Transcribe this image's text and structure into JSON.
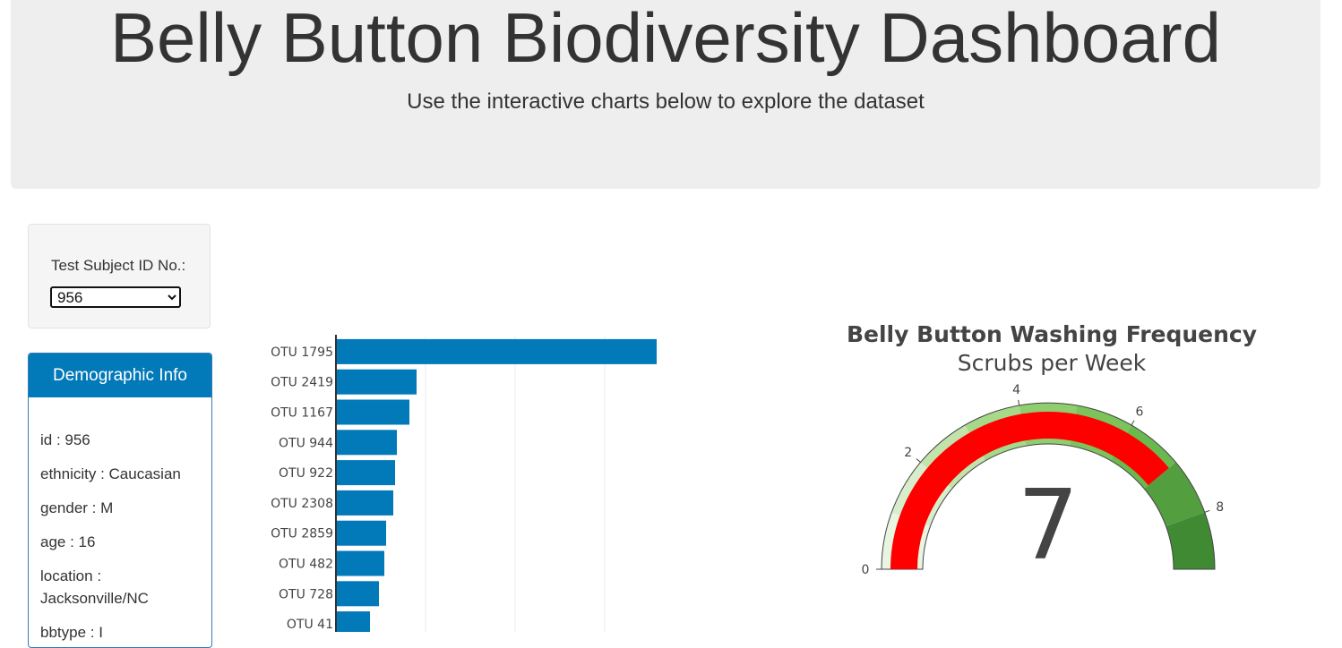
{
  "header": {
    "title": "Belly Button Biodiversity Dashboard",
    "subtitle": "Use the interactive charts below to explore the dataset"
  },
  "selector": {
    "label": "Test Subject ID No.:",
    "selected": "956"
  },
  "demographics": {
    "title": "Demographic Info",
    "rows": [
      "id : 956",
      "ethnicity : Caucasian",
      "gender : M",
      "age : 16",
      "location : Jacksonville/NC",
      "bbtype : I"
    ]
  },
  "chart_data": [
    {
      "type": "bar",
      "orientation": "horizontal",
      "categories": [
        "OTU 1795",
        "OTU 2419",
        "OTU 1167",
        "OTU 944",
        "OTU 922",
        "OTU 2308",
        "OTU 2859",
        "OTU 482",
        "OTU 728",
        "OTU 41"
      ],
      "values": [
        179,
        45,
        41,
        34,
        33,
        32,
        28,
        27,
        24,
        19
      ],
      "xlim": [
        0,
        180
      ],
      "grid": true,
      "color": "#0279b8"
    },
    {
      "type": "gauge",
      "title": "Belly Button Washing Frequency",
      "subtitle": "Scrubs per Week",
      "value": 7,
      "range": [
        0,
        9
      ],
      "ticks": [
        0,
        2,
        4,
        6,
        8
      ],
      "bar_color": "#ff0000",
      "steps": [
        {
          "range": [
            0,
            1
          ],
          "color": "#e8f5e0"
        },
        {
          "range": [
            1,
            2
          ],
          "color": "#d8eecb"
        },
        {
          "range": [
            2,
            3
          ],
          "color": "#c2e4ab"
        },
        {
          "range": [
            3,
            4
          ],
          "color": "#a7d98b"
        },
        {
          "range": [
            4,
            5
          ],
          "color": "#8fcd6e"
        },
        {
          "range": [
            5,
            6
          ],
          "color": "#7cc35c"
        },
        {
          "range": [
            6,
            7
          ],
          "color": "#69b94e"
        },
        {
          "range": [
            7,
            8
          ],
          "color": "#539f3f"
        },
        {
          "range": [
            8,
            9
          ],
          "color": "#3f8a33"
        }
      ]
    }
  ]
}
